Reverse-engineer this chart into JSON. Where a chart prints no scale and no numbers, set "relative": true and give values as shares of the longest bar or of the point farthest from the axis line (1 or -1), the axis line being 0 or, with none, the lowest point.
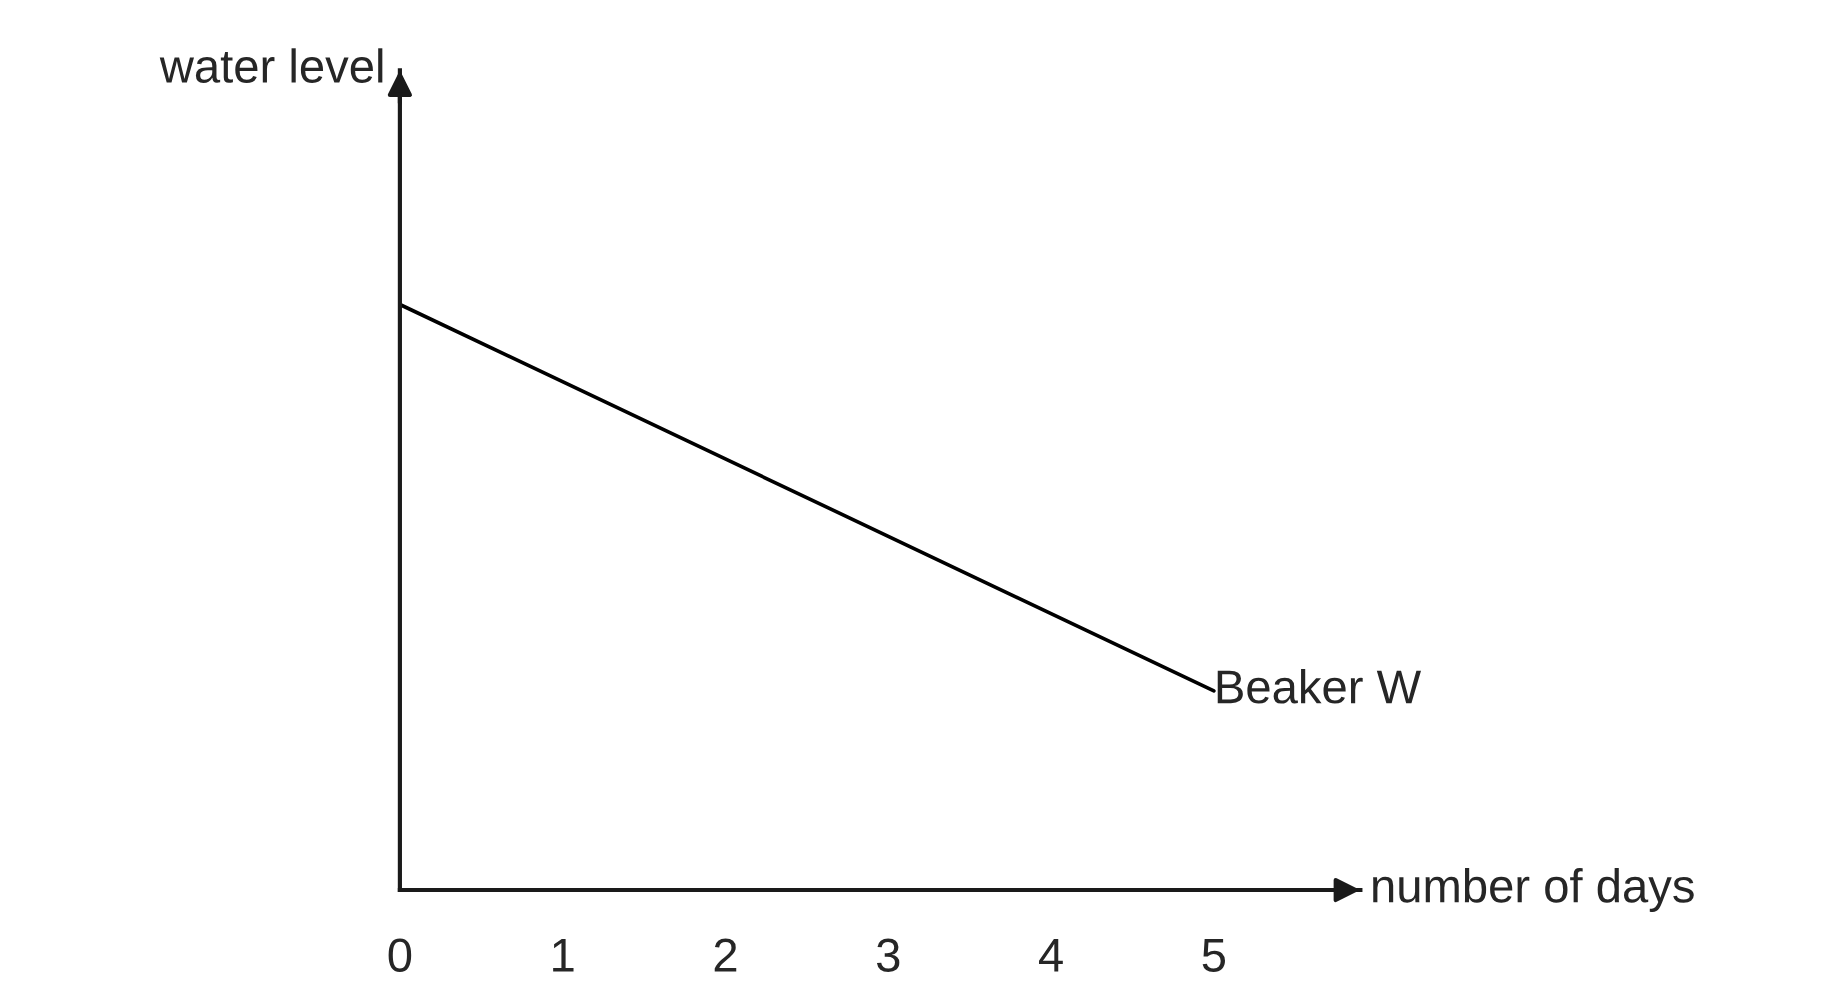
{
  "chart_data": {
    "type": "line",
    "relative": true,
    "xlabel": "number of days",
    "ylabel": "water level",
    "x": [
      0,
      5
    ],
    "xlim": [
      0,
      5.9
    ],
    "xticks": [
      0,
      1,
      2,
      3,
      4,
      5
    ],
    "series": [
      {
        "name": "Beaker W",
        "color": "#000000",
        "values": [
          1,
          0.34
        ]
      }
    ],
    "marker": "none",
    "line_style": "solid",
    "grid": false,
    "legend": false
  }
}
